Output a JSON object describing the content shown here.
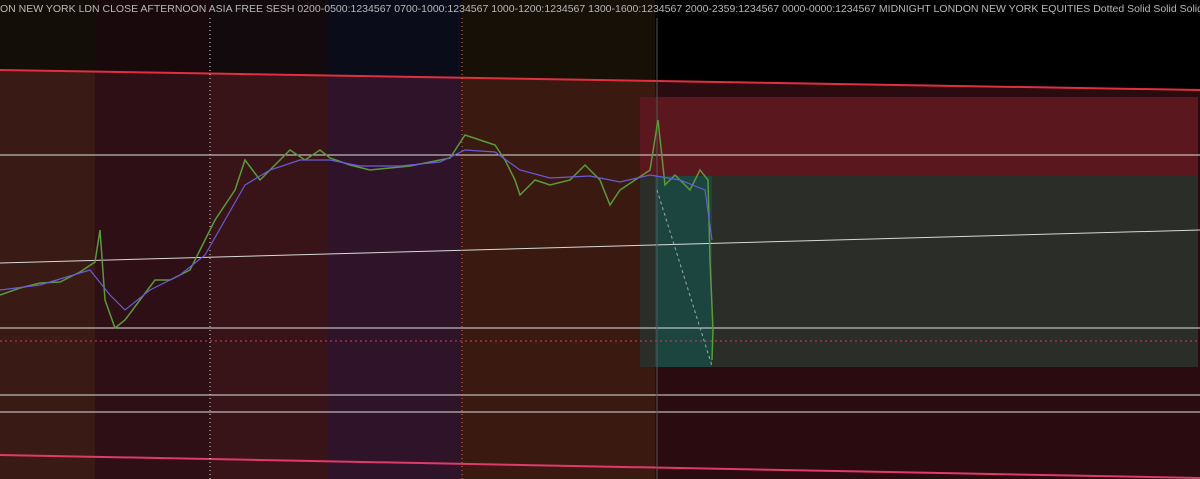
{
  "header": {
    "indicator_settings": "ON NEW YORK LDN CLOSE AFTERNOON ASIA FREE SESH 0200-0500:1234567 0700-1000:1234567 1000-1200:1234567 1300-1600:1234567 2000-2359:1234567 0000-0000:1234567 MIDNIGHT LONDON NEW YORK EQUITIES Dotted Solid Solid Solid"
  }
}
